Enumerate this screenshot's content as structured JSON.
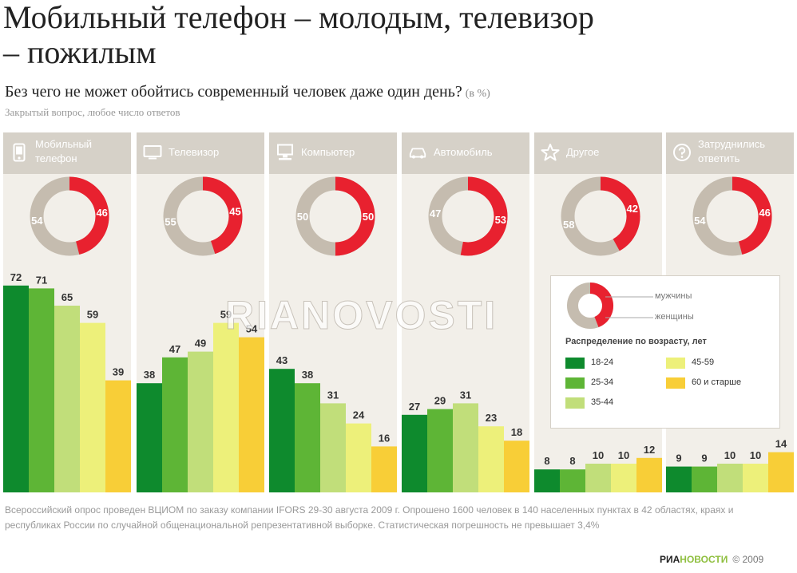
{
  "header": {
    "title": "Мобильный телефон – молодым, телевизор – пожилым",
    "question": "Без чего не может обойтись современный человек даже один день?",
    "unit": "(в %)",
    "note": "Закрытый вопрос, любое число ответов"
  },
  "legend": {
    "men": "мужчины",
    "women": "женщины",
    "age_title": "Распределение по возрасту, лет",
    "ages": [
      "18-24",
      "25-34",
      "35-44",
      "45-59",
      "60 и старше"
    ]
  },
  "colors": {
    "men": "#e8212f",
    "women": "#c5bcaf",
    "panel": "#f2efe9",
    "header": "#d6d1c8",
    "ages": [
      "#0e8a2d",
      "#5eb536",
      "#c1de7a",
      "#edf07a",
      "#f8ce37"
    ]
  },
  "chart_data": {
    "type": "bar",
    "categories": [
      "Мобильный телефон",
      "Телевизор",
      "Компьютер",
      "Автомобиль",
      "Другое",
      "Затруднились ответить"
    ],
    "icons": [
      "mobile-phone-icon",
      "tv-icon",
      "computer-icon",
      "car-icon",
      "star-icon",
      "question-icon"
    ],
    "series": [
      {
        "name": "18-24",
        "values": [
          72,
          38,
          43,
          27,
          8,
          9
        ]
      },
      {
        "name": "25-34",
        "values": [
          71,
          47,
          38,
          29,
          8,
          9
        ]
      },
      {
        "name": "35-44",
        "values": [
          65,
          49,
          31,
          31,
          10,
          10
        ]
      },
      {
        "name": "45-59",
        "values": [
          59,
          59,
          24,
          23,
          10,
          10
        ]
      },
      {
        "name": "60 и старше",
        "values": [
          39,
          54,
          16,
          18,
          12,
          14
        ]
      }
    ],
    "gender": {
      "series": [
        "мужчины",
        "женщины"
      ],
      "men": [
        46,
        45,
        50,
        53,
        42,
        46
      ],
      "women": [
        54,
        55,
        50,
        47,
        58,
        54
      ]
    },
    "ylim": [
      0,
      75
    ]
  },
  "footnote": "Всероссийский опрос проведен ВЦИОМ по заказу компании IFORS 29-30 августа 2009 г. Опрошено 1600 человек в 140 населенных пунктах в 42 областях, краях и республиках России по случайной общенациональной репрезентативной выборке. Статистическая погрешность не превышает 3,4%",
  "brand": {
    "part1": "РИА",
    "part2": "НОВОСТИ",
    "copyright": "© 2009"
  },
  "watermark": "RIANOVOSTI"
}
